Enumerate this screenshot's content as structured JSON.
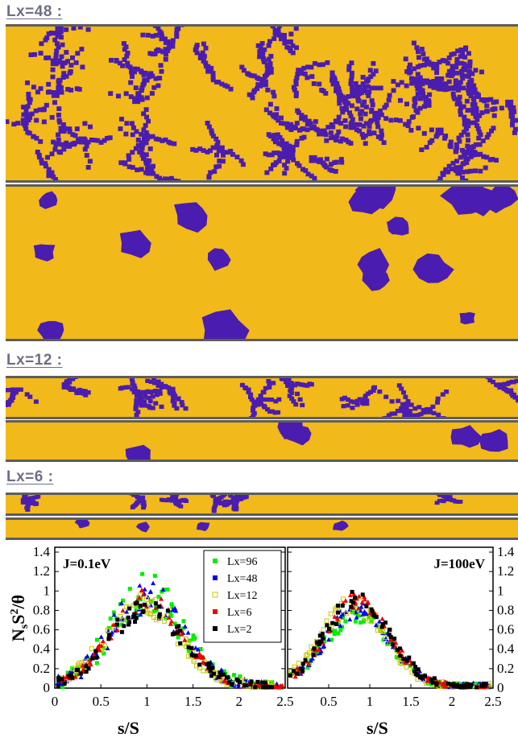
{
  "sections": {
    "lx48_label": "Lx=48 :",
    "lx12_label": "Lx=12 :",
    "lx6_label": "Lx=6 :"
  },
  "colors": {
    "substrate": "#f2b91a",
    "island": "#4a1db0",
    "frame": "#5d5d5d"
  },
  "chart_data": [
    {
      "type": "scatter",
      "title": "",
      "annotation": "J=0.1eV",
      "xlabel": "s/S",
      "ylabel": "N_sS^2/θ",
      "xlim": [
        0,
        2.5
      ],
      "ylim": [
        0,
        1.45
      ],
      "xticks": [
        "0",
        "0.5",
        "1",
        "1.5",
        "2",
        "2.5"
      ],
      "yticks": [
        "0",
        "0.2",
        "0.4",
        "0.6",
        "0.8",
        "1",
        "1.2",
        "1.4"
      ],
      "series": [
        {
          "name": "Lx=96",
          "color": "#00ee00",
          "marker": "square",
          "peak_x": 1.0,
          "peak_y": 0.95,
          "spread": 0.16
        },
        {
          "name": "Lx=48",
          "color": "#0000ee",
          "marker": "triangle",
          "peak_x": 1.0,
          "peak_y": 0.92,
          "spread": 0.14
        },
        {
          "name": "Lx=12",
          "color": "#c8c800",
          "marker": "hollow-square",
          "peak_x": 0.95,
          "peak_y": 0.86,
          "spread": 0.1
        },
        {
          "name": "Lx=6",
          "color": "#ee0000",
          "marker": "triangle",
          "peak_x": 1.0,
          "peak_y": 0.9,
          "spread": 0.08
        },
        {
          "name": "Lx=2",
          "color": "#000000",
          "marker": "square",
          "peak_x": 1.0,
          "peak_y": 0.82,
          "spread": 0.1
        }
      ]
    },
    {
      "type": "scatter",
      "title": "",
      "annotation": "J=100eV",
      "xlabel": "s/S",
      "ylabel": "",
      "xlim": [
        0,
        2.5
      ],
      "ylim": [
        0,
        1.45
      ],
      "xticks": [
        "0.5",
        "1",
        "1.5",
        "2",
        "2.5"
      ],
      "yticks": [
        "0",
        "0.2",
        "0.4",
        "0.6",
        "0.8",
        "1",
        "1.2",
        "1.4"
      ],
      "series": [
        {
          "name": "Lx=96",
          "color": "#00ee00",
          "marker": "square",
          "peak_x": 0.85,
          "peak_y": 0.75,
          "spread": 0.08
        },
        {
          "name": "Lx=48",
          "color": "#0000ee",
          "marker": "triangle",
          "peak_x": 0.85,
          "peak_y": 0.8,
          "spread": 0.08
        },
        {
          "name": "Lx=12",
          "color": "#c8c800",
          "marker": "hollow-square",
          "peak_x": 0.8,
          "peak_y": 0.85,
          "spread": 0.08
        },
        {
          "name": "Lx=6",
          "color": "#ee0000",
          "marker": "triangle",
          "peak_x": 0.85,
          "peak_y": 0.88,
          "spread": 0.07
        },
        {
          "name": "Lx=2",
          "color": "#000000",
          "marker": "square",
          "peak_x": 0.85,
          "peak_y": 0.9,
          "spread": 0.08
        }
      ]
    }
  ]
}
